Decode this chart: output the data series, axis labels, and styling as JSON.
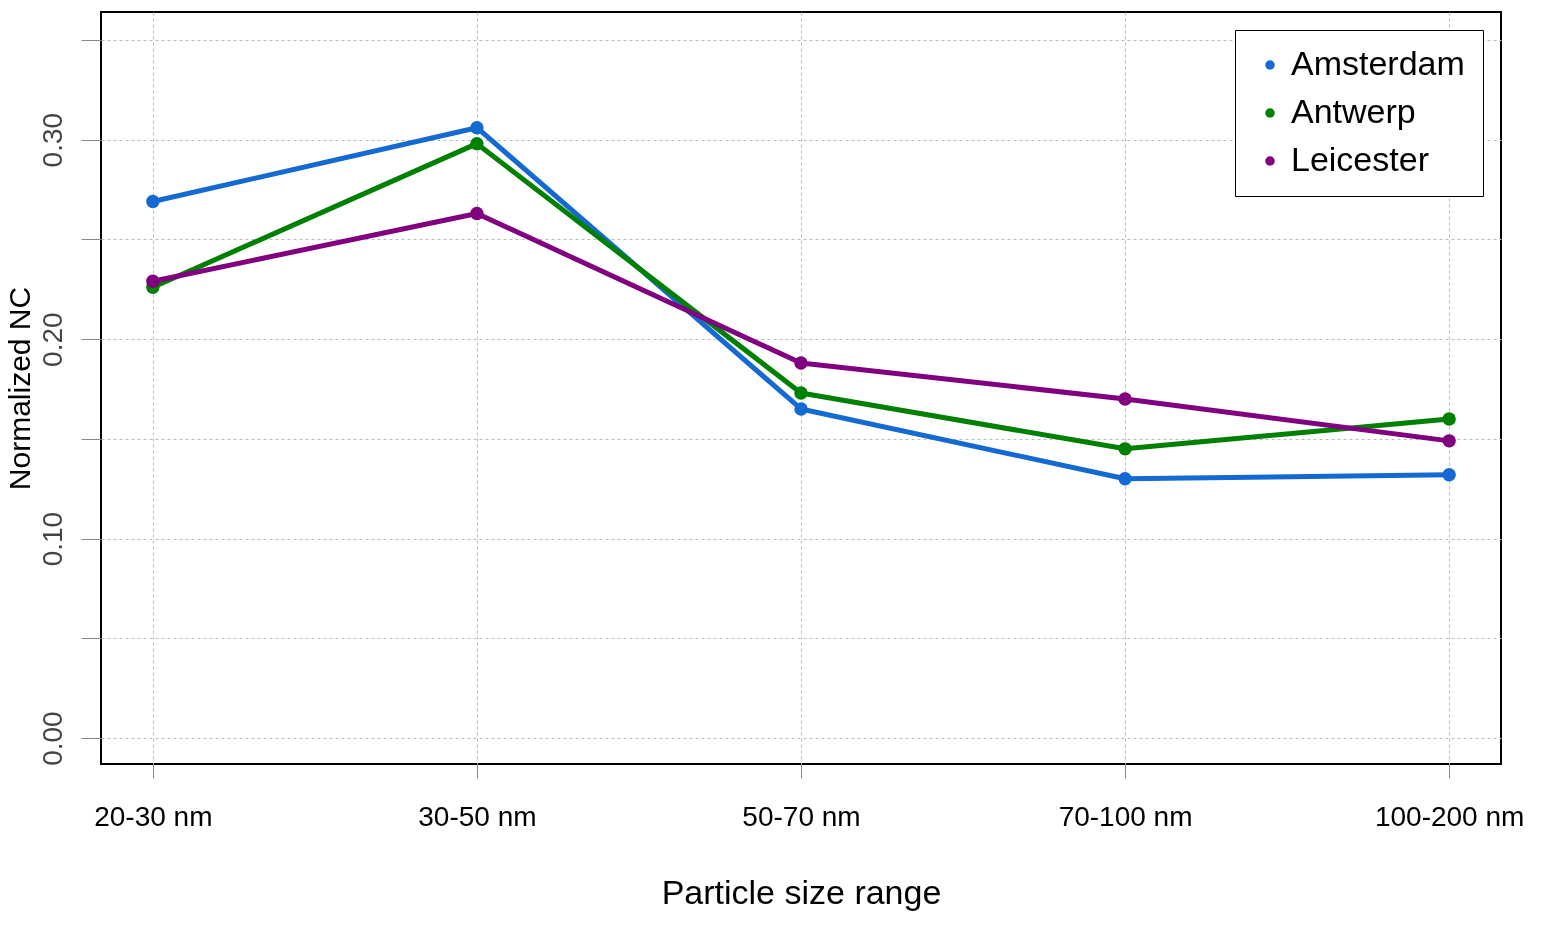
{
  "chart_data": {
    "type": "line",
    "xlabel": "Particle size range",
    "ylabel": "Normalized NC",
    "categories": [
      "20-30 nm",
      "30-50 nm",
      "50-70 nm",
      "70-100 nm",
      "100-200 nm"
    ],
    "series": [
      {
        "name": "Amsterdam",
        "color": "#1469d2",
        "values": [
          0.269,
          0.306,
          0.165,
          0.13,
          0.132
        ]
      },
      {
        "name": "Antwerp",
        "color": "#008000",
        "values": [
          0.226,
          0.298,
          0.173,
          0.145,
          0.16
        ]
      },
      {
        "name": "Leicester",
        "color": "#800080",
        "values": [
          0.229,
          0.263,
          0.188,
          0.17,
          0.149
        ]
      }
    ],
    "ylim": [
      -0.013,
      0.364
    ],
    "yticks": [
      {
        "value": 0,
        "label": "0.00"
      },
      {
        "value": 0.05,
        "label": null
      },
      {
        "value": 0.1,
        "label": "0.10"
      },
      {
        "value": 0.15,
        "label": null
      },
      {
        "value": 0.2,
        "label": "0.20"
      },
      {
        "value": 0.25,
        "label": null
      },
      {
        "value": 0.3,
        "label": "0.30"
      },
      {
        "value": 0.35,
        "label": null
      }
    ],
    "grid": true,
    "legend": "top right",
    "marker": "circle",
    "line_style": "solid"
  }
}
